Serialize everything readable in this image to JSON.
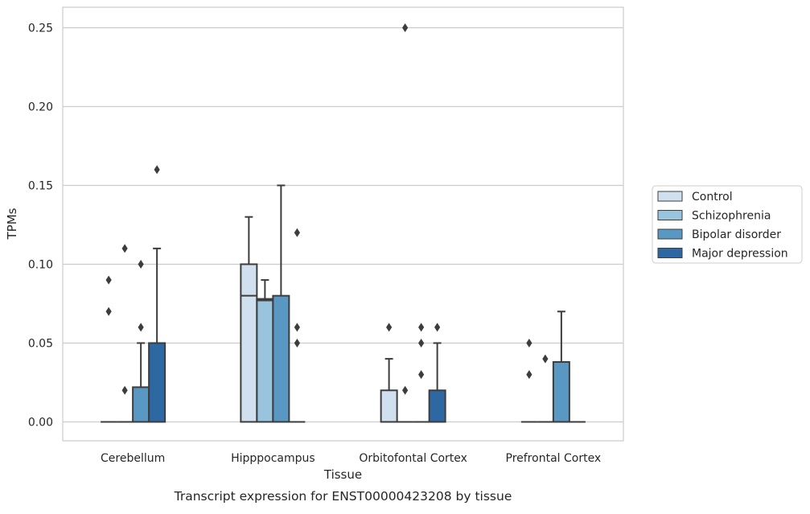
{
  "chart_data": {
    "type": "box",
    "caption": "Transcript expression for ENST00000423208 by tissue",
    "xlabel": "Tissue",
    "ylabel": "TPMs",
    "ylim": [
      -0.012,
      0.263
    ],
    "yticks": [
      "0.00",
      "0.05",
      "0.10",
      "0.15",
      "0.20",
      "0.25"
    ],
    "ytick_values": [
      0,
      0.05,
      0.1,
      0.15,
      0.2,
      0.25
    ],
    "grid": true,
    "legend_position": "right",
    "categories": [
      "Cerebellum",
      "Hipppocampus",
      "Orbitofontal Cortex",
      "Prefrontal Cortex"
    ],
    "series": [
      {
        "name": "Control",
        "color": "#d0e0ef",
        "boxes": [
          {
            "q1": 0,
            "median": 0,
            "q3": 0,
            "whisker_low": 0,
            "whisker_high": 0,
            "outliers": [
              0.07,
              0.09
            ]
          },
          {
            "q1": 0,
            "median": 0.08,
            "q3": 0.1,
            "whisker_low": 0,
            "whisker_high": 0.13,
            "outliers": []
          },
          {
            "q1": 0,
            "median": 0,
            "q3": 0.02,
            "whisker_low": 0,
            "whisker_high": 0.04,
            "outliers": [
              0.06
            ]
          },
          {
            "q1": 0,
            "median": 0,
            "q3": 0,
            "whisker_low": 0,
            "whisker_high": 0,
            "outliers": [
              0.03,
              0.05
            ]
          }
        ]
      },
      {
        "name": "Schizophrenia",
        "color": "#9ac3dd",
        "boxes": [
          {
            "q1": 0,
            "median": 0,
            "q3": 0,
            "whisker_low": 0,
            "whisker_high": 0,
            "outliers": [
              0.02,
              0.11
            ]
          },
          {
            "q1": 0,
            "median": 0.077,
            "q3": 0.078,
            "whisker_low": 0,
            "whisker_high": 0.09,
            "outliers": []
          },
          {
            "q1": 0,
            "median": 0,
            "q3": 0,
            "whisker_low": 0,
            "whisker_high": 0,
            "outliers": [
              0.02,
              0.25
            ]
          },
          {
            "q1": 0,
            "median": 0,
            "q3": 0,
            "whisker_low": 0,
            "whisker_high": 0,
            "outliers": [
              0.04
            ]
          }
        ]
      },
      {
        "name": "Bipolar disorder",
        "color": "#5a98c4",
        "boxes": [
          {
            "q1": 0,
            "median": 0,
            "q3": 0.022,
            "whisker_low": 0,
            "whisker_high": 0.05,
            "outliers": [
              0.06,
              0.1
            ]
          },
          {
            "q1": 0,
            "median": 0,
            "q3": 0.08,
            "whisker_low": 0,
            "whisker_high": 0.15,
            "outliers": []
          },
          {
            "q1": 0,
            "median": 0,
            "q3": 0,
            "whisker_low": 0,
            "whisker_high": 0,
            "outliers": [
              0.03,
              0.05,
              0.06
            ]
          },
          {
            "q1": 0,
            "median": 0,
            "q3": 0.038,
            "whisker_low": 0,
            "whisker_high": 0.07,
            "outliers": []
          }
        ]
      },
      {
        "name": "Major depression",
        "color": "#2e68a3",
        "boxes": [
          {
            "q1": 0,
            "median": 0,
            "q3": 0.05,
            "whisker_low": 0,
            "whisker_high": 0.11,
            "outliers": [
              0.16
            ]
          },
          {
            "q1": 0,
            "median": 0,
            "q3": 0,
            "whisker_low": 0,
            "whisker_high": 0,
            "outliers": [
              0.05,
              0.06,
              0.12
            ]
          },
          {
            "q1": 0,
            "median": 0,
            "q3": 0.02,
            "whisker_low": 0,
            "whisker_high": 0.05,
            "outliers": [
              0.06
            ]
          },
          {
            "q1": 0,
            "median": 0,
            "q3": 0,
            "whisker_low": 0,
            "whisker_high": 0,
            "outliers": []
          }
        ]
      }
    ]
  }
}
